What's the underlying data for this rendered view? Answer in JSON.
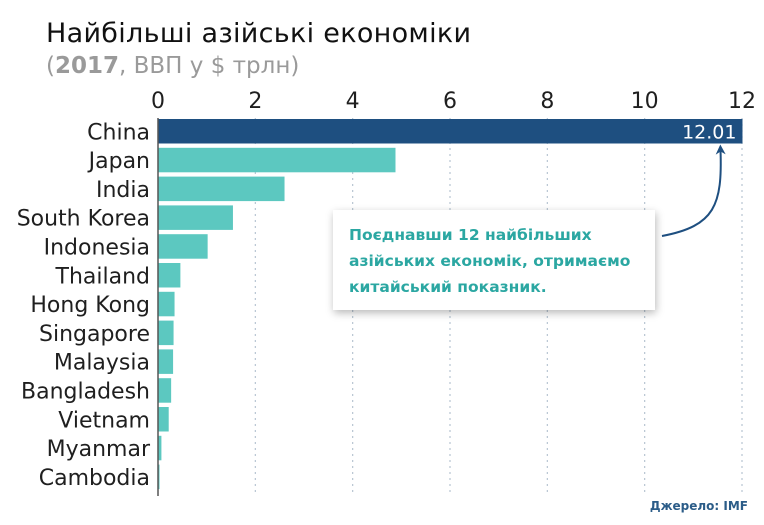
{
  "header": {
    "title": "Найбільші азійські економіки",
    "subtitle_open": "(",
    "subtitle_year": "2017",
    "subtitle_rest": ", ВВП у $ трлн)"
  },
  "callout": {
    "text_before": "Поєднавши ",
    "highlight": "12",
    "text_after": " найбільших азійських економік, отримаємо китайський показник."
  },
  "source": "Джерело: IMF",
  "colors": {
    "china_bar": "#1e4f80",
    "bars": "#5cc8c0",
    "grid": "#b7c5d2",
    "callout_text": "#2ba7a2",
    "source_text": "#2b5c88"
  },
  "chart_data": {
    "type": "bar",
    "orientation": "horizontal",
    "title": "Найбільші азійські економіки",
    "subtitle": "(2017, ВВП у $ трлн)",
    "categories": [
      "China",
      "Japan",
      "India",
      "South Korea",
      "Indonesia",
      "Thailand",
      "Hong Kong",
      "Singapore",
      "Malaysia",
      "Bangladesh",
      "Vietnam",
      "Myanmar",
      "Cambodia"
    ],
    "values": [
      12.01,
      4.88,
      2.6,
      1.54,
      1.02,
      0.46,
      0.34,
      0.32,
      0.31,
      0.27,
      0.22,
      0.07,
      0.02
    ],
    "xlim": [
      0,
      12
    ],
    "xticks": [
      0,
      2,
      4,
      6,
      8,
      10,
      12
    ],
    "value_label": "12.01",
    "gridlines": true,
    "axis_position": "top"
  }
}
